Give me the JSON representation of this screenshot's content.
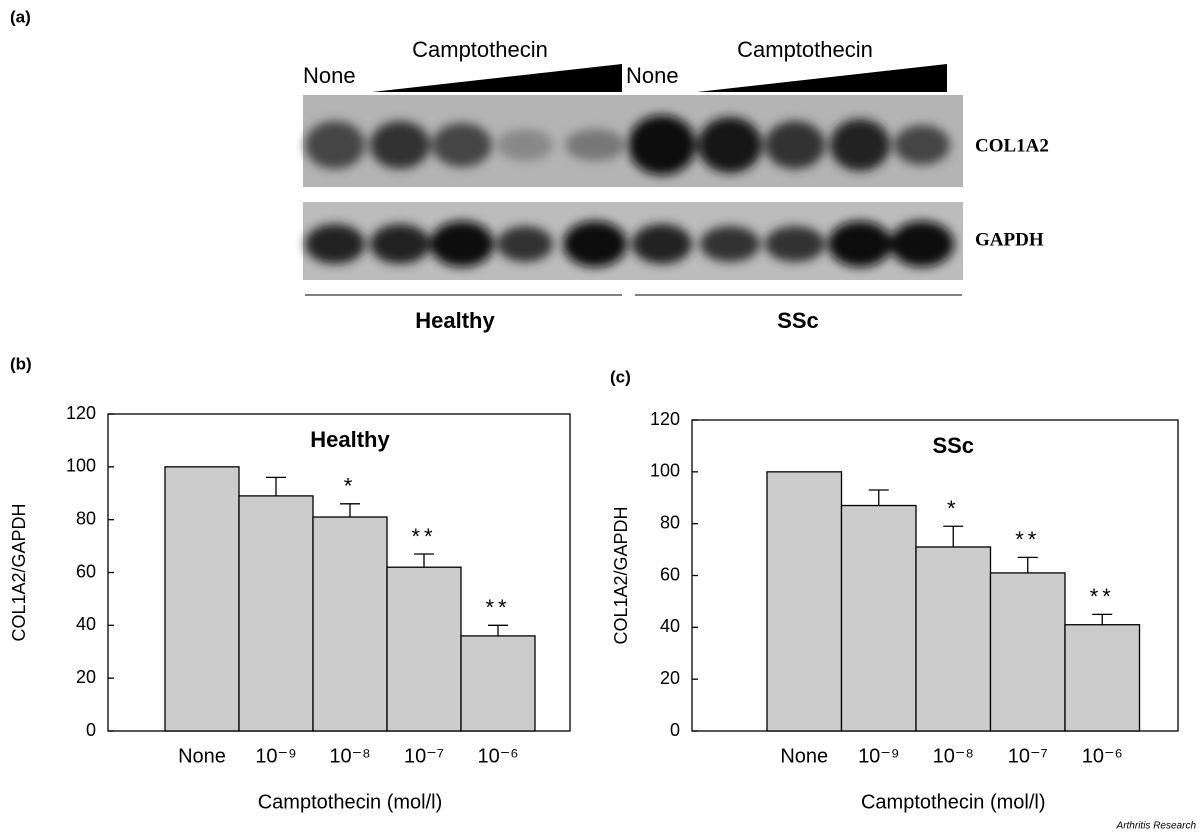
{
  "panel_a": {
    "label": "(a)",
    "lanes_left": {
      "none": "None",
      "treatment": "Camptothecin"
    },
    "lanes_right": {
      "none": "None",
      "treatment": "Camptothecin"
    },
    "rows": [
      "COL1A2",
      "GAPDH"
    ],
    "groups": [
      "Healthy",
      "SSc"
    ]
  },
  "chart_data": [
    {
      "type": "bar",
      "panel": "(b)",
      "title": "Healthy",
      "xlabel": "Camptothecin (mol/l)",
      "ylabel": "COL1A2/GAPDH",
      "categories": [
        "None",
        "10⁻⁹",
        "10⁻⁸",
        "10⁻⁷",
        "10⁻⁶"
      ],
      "values": [
        100,
        89,
        81,
        62,
        36
      ],
      "errors": [
        null,
        7,
        5,
        5,
        4
      ],
      "annotations": [
        null,
        null,
        "*",
        "**",
        "**"
      ],
      "color": "#cccccc",
      "ylim": [
        0,
        120
      ],
      "yticks": [
        0,
        20,
        40,
        60,
        80,
        100,
        120
      ]
    },
    {
      "type": "bar",
      "panel": "(c)",
      "title": "SSc",
      "xlabel": "Camptothecin (mol/l)",
      "ylabel": "COL1A2/GAPDH",
      "categories": [
        "None",
        "10⁻⁹",
        "10⁻⁸",
        "10⁻⁷",
        "10⁻⁶"
      ],
      "values": [
        100,
        87,
        71,
        61,
        41
      ],
      "errors": [
        null,
        6,
        8,
        6,
        4
      ],
      "annotations": [
        null,
        null,
        "*",
        "**",
        "**"
      ],
      "color": "#cccccc",
      "ylim": [
        0,
        120
      ],
      "yticks": [
        0,
        20,
        40,
        60,
        80,
        100,
        120
      ]
    }
  ],
  "source": "Arthritis Research"
}
